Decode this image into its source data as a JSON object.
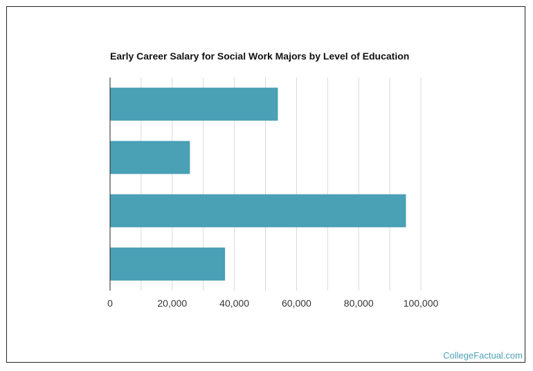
{
  "chart_data": {
    "type": "bar",
    "orientation": "horizontal",
    "title": "Early Career Salary for Social Work Majors by Level of Education",
    "categories": [
      "",
      "",
      "",
      ""
    ],
    "values": [
      54000,
      25700,
      95200,
      37000
    ],
    "xlim": [
      0,
      100000
    ],
    "x_ticks": [
      0,
      20000,
      40000,
      60000,
      80000,
      100000
    ],
    "x_tick_labels": [
      "0",
      "20,000",
      "40,000",
      "60,000",
      "80,000",
      "100,000"
    ],
    "xlabel": "",
    "ylabel": "",
    "grid": true,
    "bar_color": "#4aa0b5"
  },
  "footer": {
    "source": "CollegeFactual.com"
  },
  "colors": {
    "bar": "#4aa0b5",
    "grid": "#d9d9d9",
    "axis": "#222222",
    "watermark": "#4aa0b5"
  }
}
